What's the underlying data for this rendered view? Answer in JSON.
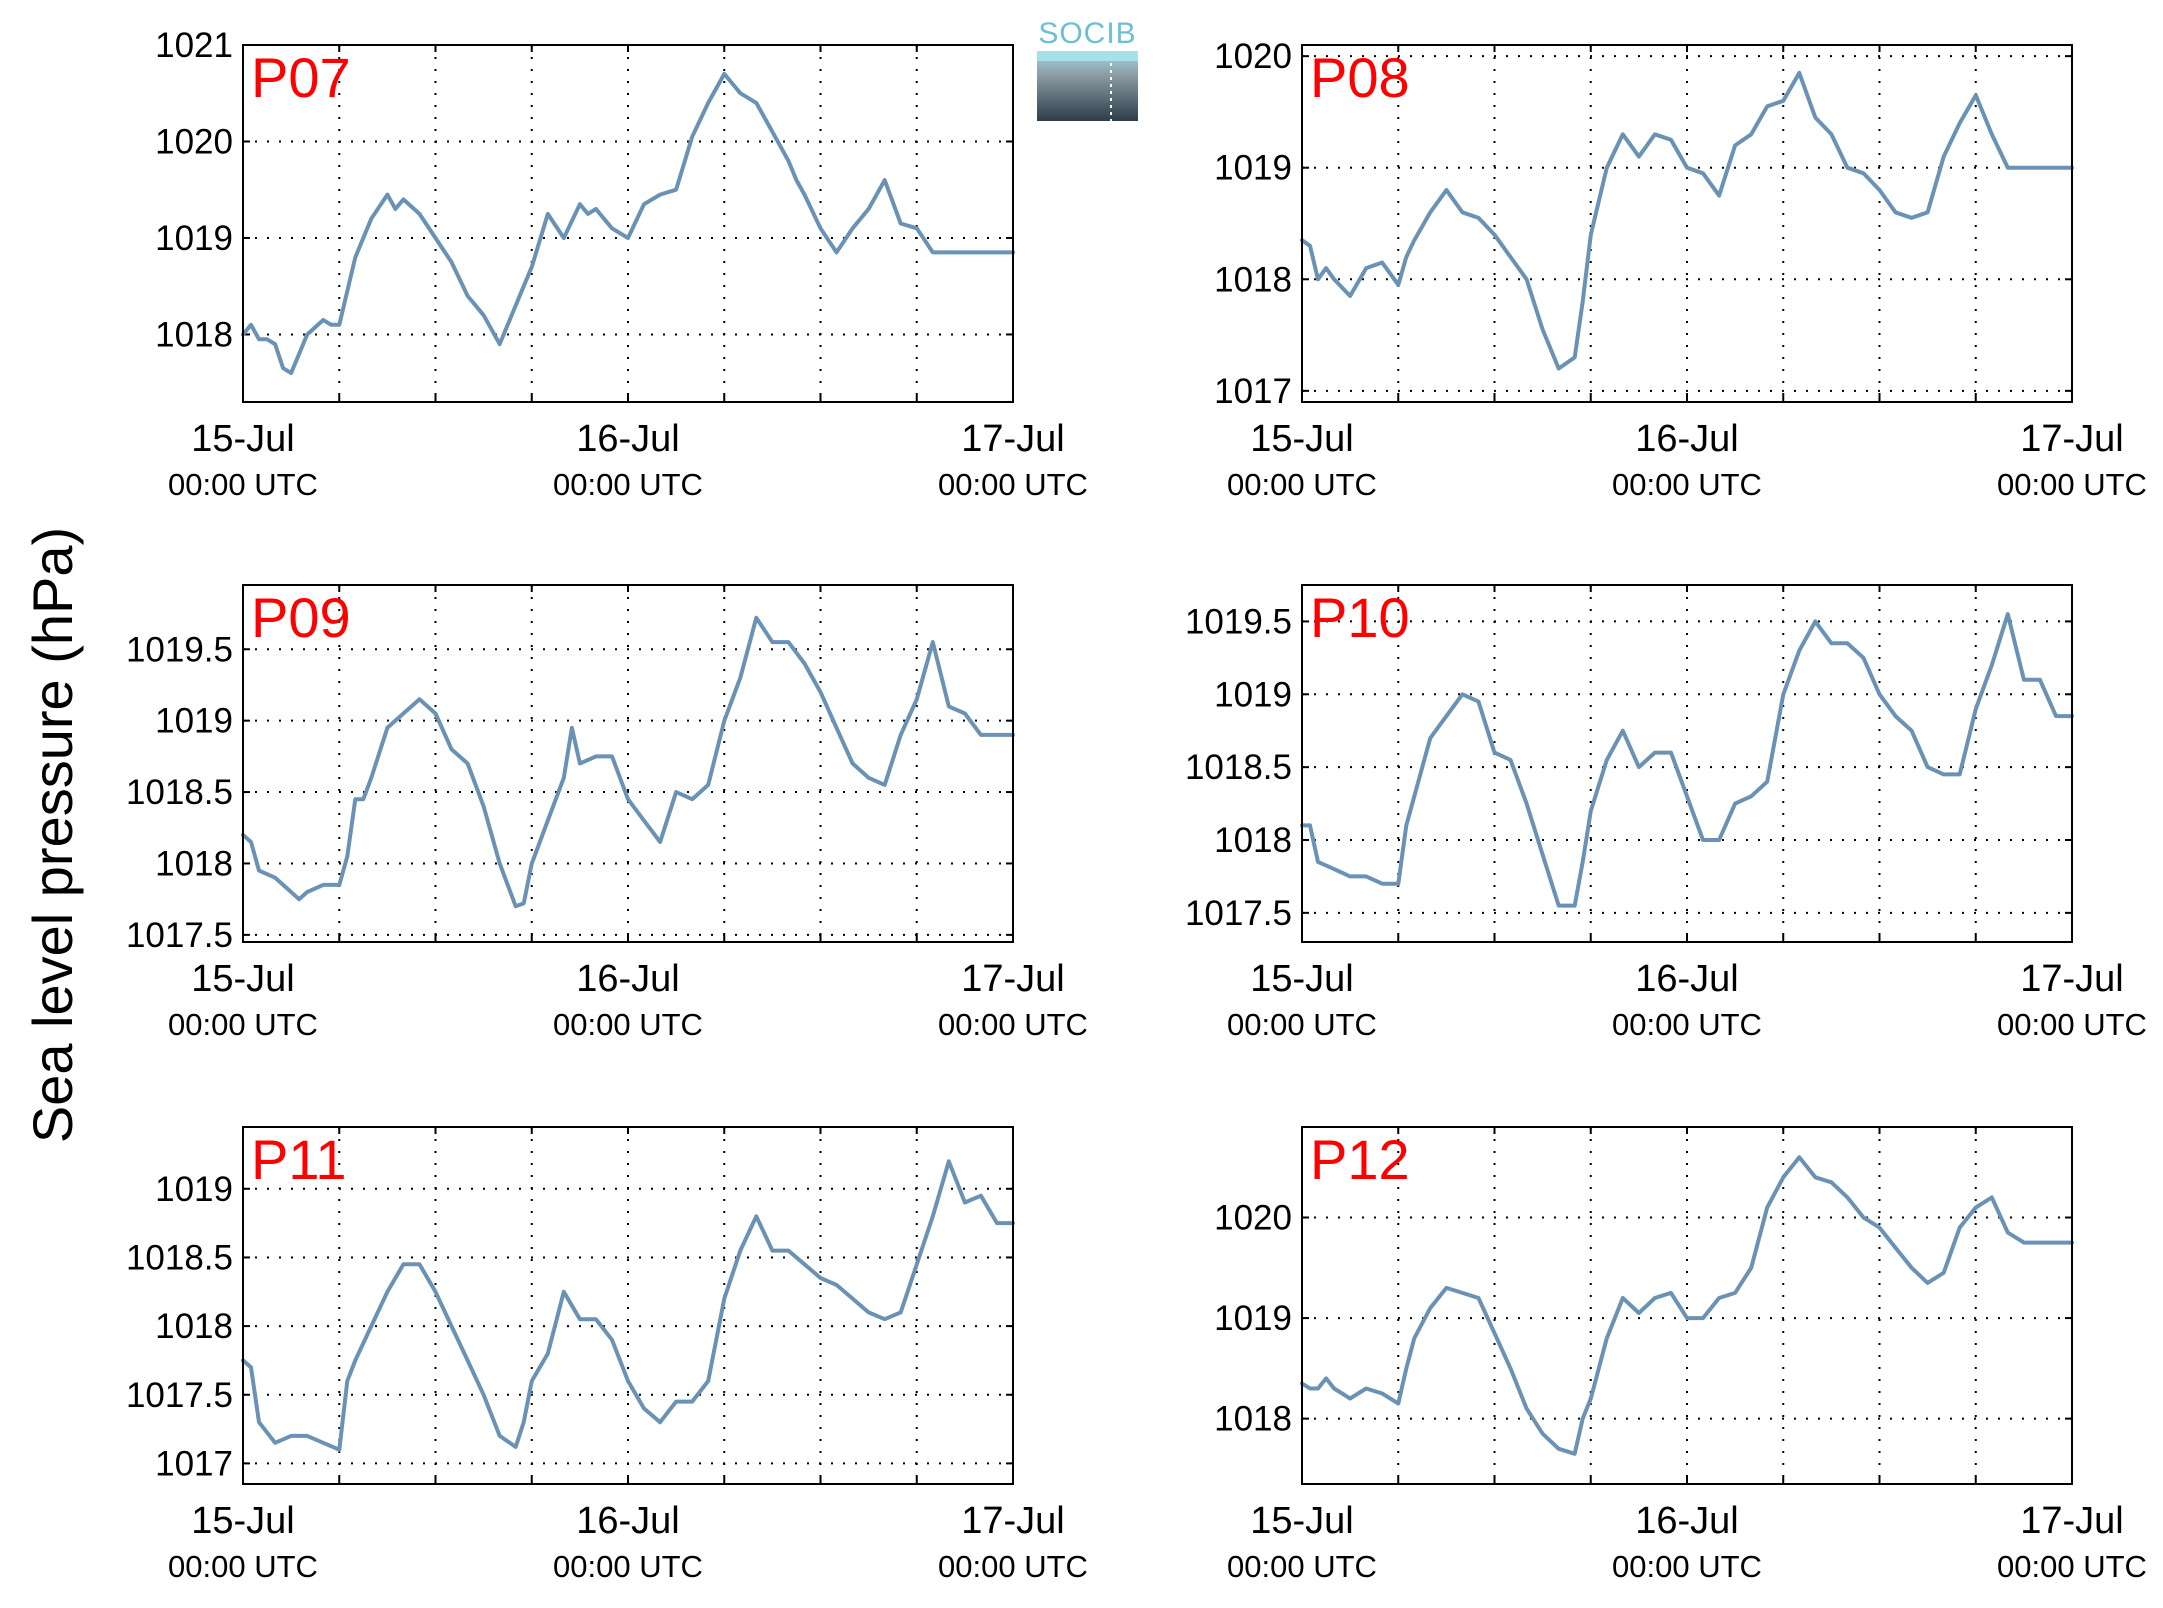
{
  "figure": {
    "ylabel": "Sea level pressure (hPa)",
    "logo_text": "SOCIB",
    "line_color": "#6a92b5",
    "label_color": "#ff0000"
  },
  "chart_data": [
    {
      "type": "line",
      "label": "P07",
      "xticks": [
        {
          "top": "15-Jul",
          "bottom": "00:00 UTC"
        },
        {
          "top": "16-Jul",
          "bottom": "00:00 UTC"
        },
        {
          "top": "17-Jul",
          "bottom": "00:00 UTC"
        }
      ],
      "xlim": [
        0,
        48
      ],
      "ylim": [
        1017.3,
        1021.0
      ],
      "yticks": [
        1018,
        1019,
        1020,
        1021
      ],
      "yticklabels": [
        "1018",
        "1019",
        "1020",
        "1021"
      ],
      "x": [
        0,
        0.5,
        1,
        1.5,
        2,
        2.5,
        3,
        4,
        5,
        5.5,
        6,
        7,
        8,
        9,
        9.5,
        10,
        11,
        12,
        13,
        14,
        15,
        16,
        17,
        17.5,
        18,
        19,
        20,
        21,
        21.5,
        22,
        23,
        24,
        25,
        26,
        27,
        28,
        29,
        30,
        31,
        32,
        33,
        34,
        34.5,
        35,
        36,
        37,
        38,
        39,
        40,
        41,
        42,
        43,
        44,
        45,
        46,
        47,
        48
      ],
      "y": [
        1018.0,
        1018.1,
        1017.95,
        1017.95,
        1017.9,
        1017.65,
        1017.6,
        1018.0,
        1018.15,
        1018.1,
        1018.1,
        1018.8,
        1019.2,
        1019.45,
        1019.3,
        1019.4,
        1019.25,
        1019.0,
        1018.75,
        1018.4,
        1018.2,
        1017.9,
        1018.3,
        1018.5,
        1018.7,
        1019.25,
        1019.0,
        1019.35,
        1019.25,
        1019.3,
        1019.1,
        1019.0,
        1019.35,
        1019.45,
        1019.5,
        1020.05,
        1020.4,
        1020.7,
        1020.5,
        1020.4,
        1020.1,
        1019.8,
        1019.6,
        1019.45,
        1019.1,
        1018.85,
        1019.1,
        1019.3,
        1019.6,
        1019.15,
        1019.1,
        1018.85,
        1018.85,
        1018.85,
        1018.85,
        1018.85,
        1018.85
      ]
    },
    {
      "type": "line",
      "label": "P08",
      "xticks": [
        {
          "top": "15-Jul",
          "bottom": "00:00 UTC"
        },
        {
          "top": "16-Jul",
          "bottom": "00:00 UTC"
        },
        {
          "top": "17-Jul",
          "bottom": "00:00 UTC"
        }
      ],
      "xlim": [
        0,
        48
      ],
      "ylim": [
        1016.9,
        1020.1
      ],
      "yticks": [
        1017,
        1018,
        1019,
        1020
      ],
      "yticklabels": [
        "1017",
        "1018",
        "1019",
        "1020"
      ],
      "x": [
        0,
        0.5,
        1,
        1.5,
        2,
        3,
        4,
        5,
        6,
        6.5,
        7,
        8,
        9,
        10,
        11,
        12,
        13,
        14,
        15,
        16,
        17,
        17.5,
        18,
        19,
        20,
        21,
        22,
        23,
        24,
        25,
        26,
        27,
        28,
        29,
        30,
        31,
        32,
        33,
        34,
        35,
        36,
        37,
        38,
        39,
        40,
        41,
        42,
        43,
        44,
        45,
        46,
        47,
        48
      ],
      "y": [
        1018.35,
        1018.3,
        1018.0,
        1018.1,
        1018.0,
        1017.85,
        1018.1,
        1018.15,
        1017.95,
        1018.2,
        1018.35,
        1018.6,
        1018.8,
        1018.6,
        1018.55,
        1018.4,
        1018.2,
        1018.0,
        1017.55,
        1017.2,
        1017.3,
        1017.8,
        1018.4,
        1019.0,
        1019.3,
        1019.1,
        1019.3,
        1019.25,
        1019.0,
        1018.95,
        1018.75,
        1019.2,
        1019.3,
        1019.55,
        1019.6,
        1019.85,
        1019.45,
        1019.3,
        1019.0,
        1018.95,
        1018.8,
        1018.6,
        1018.55,
        1018.6,
        1019.1,
        1019.4,
        1019.65,
        1019.3,
        1019.0,
        1019.0,
        1019.0,
        1019.0,
        1019.0
      ]
    },
    {
      "type": "line",
      "label": "P09",
      "xticks": [
        {
          "top": "15-Jul",
          "bottom": "00:00 UTC"
        },
        {
          "top": "16-Jul",
          "bottom": "00:00 UTC"
        },
        {
          "top": "17-Jul",
          "bottom": "00:00 UTC"
        }
      ],
      "xlim": [
        0,
        48
      ],
      "ylim": [
        1017.45,
        1019.95
      ],
      "yticks": [
        1017.5,
        1018,
        1018.5,
        1019,
        1019.5
      ],
      "yticklabels": [
        "1017.5",
        "1018",
        "1018.5",
        "1019",
        "1019.5"
      ],
      "x": [
        0,
        0.5,
        1,
        2,
        3,
        3.5,
        4,
        5,
        6,
        6.5,
        7,
        7.5,
        8,
        9,
        10,
        11,
        12,
        13,
        14,
        15,
        16,
        17,
        17.5,
        18,
        19,
        20,
        20.5,
        21,
        22,
        23,
        24,
        25,
        26,
        27,
        28,
        29,
        30,
        31,
        32,
        33,
        34,
        35,
        36,
        37,
        38,
        39,
        40,
        41,
        42,
        43,
        44,
        45,
        46,
        47,
        48
      ],
      "y": [
        1018.2,
        1018.15,
        1017.95,
        1017.9,
        1017.8,
        1017.75,
        1017.8,
        1017.85,
        1017.85,
        1018.05,
        1018.45,
        1018.45,
        1018.6,
        1018.95,
        1019.05,
        1019.15,
        1019.05,
        1018.8,
        1018.7,
        1018.4,
        1018.0,
        1017.7,
        1017.72,
        1018.0,
        1018.3,
        1018.6,
        1018.95,
        1018.7,
        1018.75,
        1018.75,
        1018.45,
        1018.3,
        1018.15,
        1018.5,
        1018.45,
        1018.55,
        1019.0,
        1019.3,
        1019.72,
        1019.55,
        1019.55,
        1019.4,
        1019.2,
        1018.95,
        1018.7,
        1018.6,
        1018.55,
        1018.9,
        1019.15,
        1019.55,
        1019.1,
        1019.05,
        1018.9,
        1018.9,
        1018.9
      ]
    },
    {
      "type": "line",
      "label": "P10",
      "xticks": [
        {
          "top": "15-Jul",
          "bottom": "00:00 UTC"
        },
        {
          "top": "16-Jul",
          "bottom": "00:00 UTC"
        },
        {
          "top": "17-Jul",
          "bottom": "00:00 UTC"
        }
      ],
      "xlim": [
        0,
        48
      ],
      "ylim": [
        1017.3,
        1019.75
      ],
      "yticks": [
        1017.5,
        1018,
        1018.5,
        1019,
        1019.5
      ],
      "yticklabels": [
        "1017.5",
        "1018",
        "1018.5",
        "1019",
        "1019.5"
      ],
      "x": [
        0,
        0.5,
        1,
        2,
        3,
        4,
        5,
        6,
        6.5,
        7,
        8,
        9,
        10,
        11,
        12,
        13,
        14,
        15,
        16,
        17,
        17.5,
        18,
        19,
        20,
        21,
        22,
        23,
        24,
        25,
        26,
        27,
        28,
        29,
        30,
        31,
        32,
        33,
        34,
        35,
        36,
        37,
        38,
        39,
        40,
        41,
        42,
        43,
        44,
        45,
        46,
        47,
        48
      ],
      "y": [
        1018.1,
        1018.1,
        1017.85,
        1017.8,
        1017.75,
        1017.75,
        1017.7,
        1017.7,
        1018.1,
        1018.3,
        1018.7,
        1018.85,
        1019.0,
        1018.95,
        1018.6,
        1018.55,
        1018.25,
        1017.9,
        1017.55,
        1017.55,
        1017.85,
        1018.2,
        1018.55,
        1018.75,
        1018.5,
        1018.6,
        1018.6,
        1018.3,
        1018.0,
        1018.0,
        1018.25,
        1018.3,
        1018.4,
        1019.0,
        1019.3,
        1019.5,
        1019.35,
        1019.35,
        1019.25,
        1019.0,
        1018.85,
        1018.75,
        1018.5,
        1018.45,
        1018.45,
        1018.9,
        1019.2,
        1019.55,
        1019.1,
        1019.1,
        1018.85,
        1018.85
      ]
    },
    {
      "type": "line",
      "label": "P11",
      "xticks": [
        {
          "top": "15-Jul",
          "bottom": "00:00 UTC"
        },
        {
          "top": "16-Jul",
          "bottom": "00:00 UTC"
        },
        {
          "top": "17-Jul",
          "bottom": "00:00 UTC"
        }
      ],
      "xlim": [
        0,
        48
      ],
      "ylim": [
        1016.85,
        1019.45
      ],
      "yticks": [
        1017,
        1017.5,
        1018,
        1018.5,
        1019
      ],
      "yticklabels": [
        "1017",
        "1017.5",
        "1018",
        "1018.5",
        "1019"
      ],
      "x": [
        0,
        0.5,
        1,
        2,
        3,
        4,
        5,
        6,
        6.5,
        7,
        8,
        9,
        10,
        11,
        12,
        13,
        14,
        15,
        16,
        17,
        17.5,
        18,
        19,
        20,
        21,
        22,
        23,
        24,
        25,
        26,
        27,
        28,
        29,
        30,
        31,
        32,
        33,
        34,
        35,
        36,
        37,
        38,
        39,
        40,
        41,
        42,
        43,
        44,
        45,
        46,
        47,
        48
      ],
      "y": [
        1017.75,
        1017.7,
        1017.3,
        1017.15,
        1017.2,
        1017.2,
        1017.15,
        1017.1,
        1017.6,
        1017.75,
        1018.0,
        1018.25,
        1018.45,
        1018.45,
        1018.25,
        1018.0,
        1017.75,
        1017.5,
        1017.2,
        1017.12,
        1017.3,
        1017.6,
        1017.8,
        1018.25,
        1018.05,
        1018.05,
        1017.9,
        1017.6,
        1017.4,
        1017.3,
        1017.45,
        1017.45,
        1017.6,
        1018.2,
        1018.55,
        1018.8,
        1018.55,
        1018.55,
        1018.45,
        1018.35,
        1018.3,
        1018.2,
        1018.1,
        1018.05,
        1018.1,
        1018.45,
        1018.8,
        1019.2,
        1018.9,
        1018.95,
        1018.75,
        1018.75
      ]
    },
    {
      "type": "line",
      "label": "P12",
      "xticks": [
        {
          "top": "15-Jul",
          "bottom": "00:00 UTC"
        },
        {
          "top": "16-Jul",
          "bottom": "00:00 UTC"
        },
        {
          "top": "17-Jul",
          "bottom": "00:00 UTC"
        }
      ],
      "xlim": [
        0,
        48
      ],
      "ylim": [
        1017.35,
        1020.9
      ],
      "yticks": [
        1018,
        1019,
        1020
      ],
      "yticklabels": [
        "1018",
        "1019",
        "1020"
      ],
      "x": [
        0,
        0.5,
        1,
        1.5,
        2,
        3,
        4,
        5,
        6,
        6.5,
        7,
        8,
        9,
        10,
        11,
        12,
        13,
        14,
        15,
        16,
        17,
        17.5,
        18,
        19,
        20,
        21,
        22,
        23,
        24,
        25,
        26,
        27,
        28,
        29,
        30,
        31,
        32,
        33,
        34,
        35,
        36,
        37,
        38,
        39,
        40,
        41,
        42,
        43,
        44,
        45,
        46,
        47,
        48
      ],
      "y": [
        1018.35,
        1018.3,
        1018.3,
        1018.4,
        1018.3,
        1018.2,
        1018.3,
        1018.25,
        1018.15,
        1018.5,
        1018.8,
        1019.1,
        1019.3,
        1019.25,
        1019.2,
        1018.85,
        1018.5,
        1018.1,
        1017.85,
        1017.7,
        1017.65,
        1018.0,
        1018.2,
        1018.8,
        1019.2,
        1019.05,
        1019.2,
        1019.25,
        1019.0,
        1019.0,
        1019.2,
        1019.25,
        1019.5,
        1020.1,
        1020.4,
        1020.6,
        1020.4,
        1020.35,
        1020.2,
        1020.0,
        1019.9,
        1019.7,
        1019.5,
        1019.35,
        1019.45,
        1019.9,
        1020.1,
        1020.2,
        1019.85,
        1019.75,
        1019.75,
        1019.75,
        1019.75
      ]
    }
  ]
}
